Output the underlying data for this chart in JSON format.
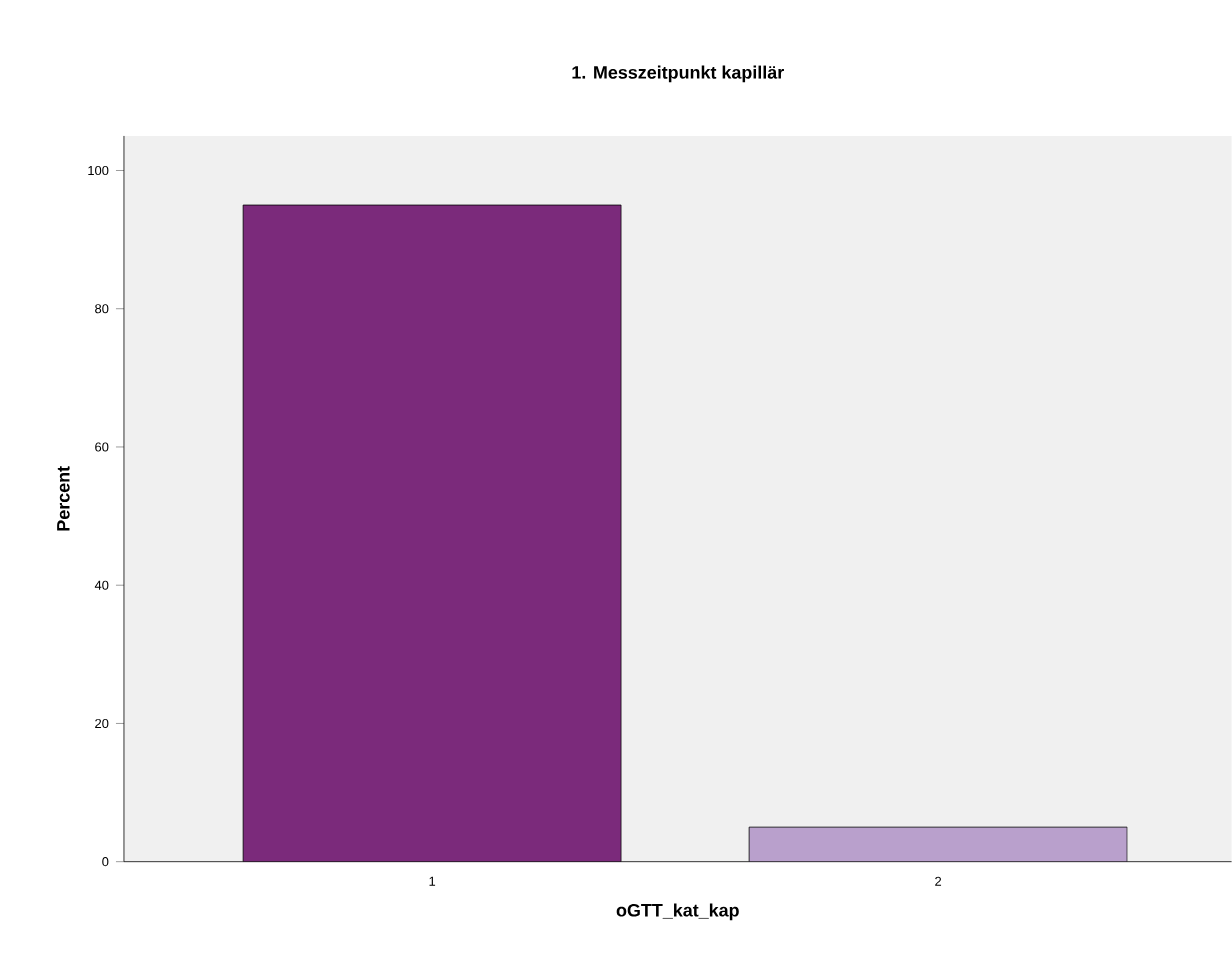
{
  "chart_data": {
    "type": "bar",
    "title": "1. Messzeitpunkt kapillär",
    "xlabel": "oGTT_kat_kap",
    "ylabel": "Percent",
    "categories": [
      "1",
      "2"
    ],
    "values": [
      95,
      5
    ],
    "colors": [
      "#7b2a7b",
      "#b9a0cc"
    ],
    "ylim": [
      0,
      105
    ],
    "yticks": [
      0,
      20,
      40,
      60,
      80,
      100
    ],
    "grid": false
  }
}
